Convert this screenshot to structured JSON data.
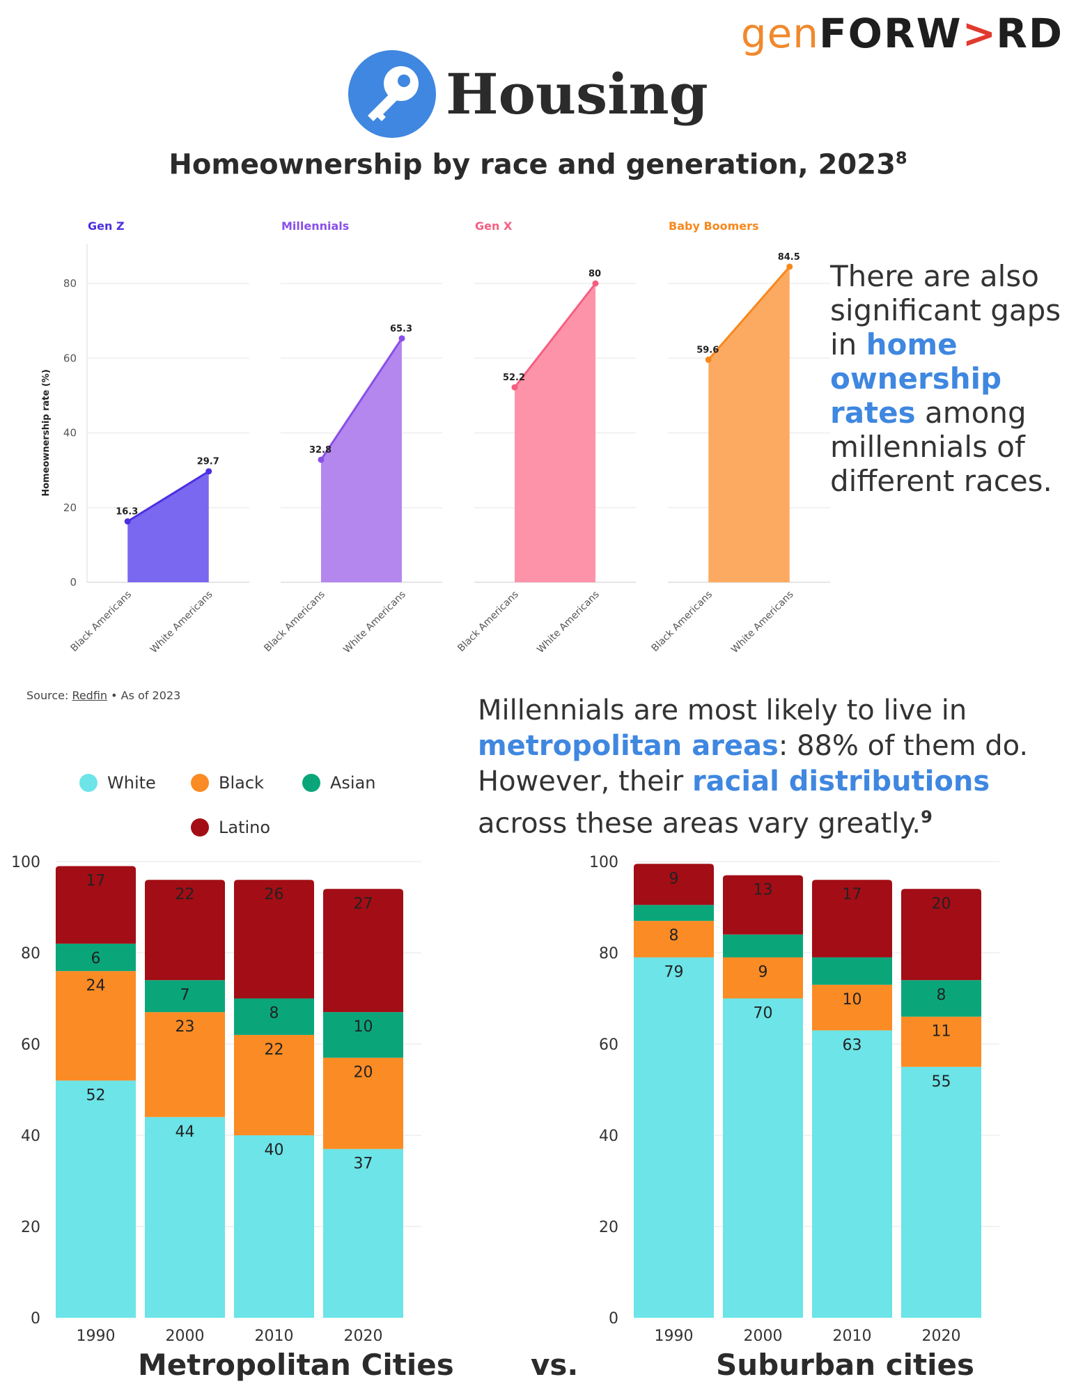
{
  "logo": {
    "gen": "gen",
    "forward_a": "FORW",
    "forward_arrow": ">",
    "forward_b": "RD"
  },
  "header": {
    "title": "Housing",
    "icon": "key-icon",
    "icon_color": "#3f87e0"
  },
  "chart_title": "Homeownership by race and generation, 2023",
  "chart_title_ref": "8",
  "source": {
    "prefix": "Source:",
    "link": "Redfin",
    "suffix": "• As of 2023"
  },
  "side_text": {
    "pre": "There are also significant gaps in",
    "highlight": "home ownership rates",
    "post": "among millennials of different races."
  },
  "mid_text": {
    "p1": "Millennials are most likely to live in",
    "h1": "metropolitan areas",
    "p2": ": 88% of them do.",
    "p3": "However, their",
    "h2": "racial distributions",
    "p4": "across these areas vary greatly.",
    "ref": "9"
  },
  "legend": [
    {
      "label": "White",
      "color": "#6ce4e8"
    },
    {
      "label": "Black",
      "color": "#fb8b24"
    },
    {
      "label": "Asian",
      "color": "#0aa67a"
    },
    {
      "label": "Latino",
      "color": "#a30d15"
    }
  ],
  "titles": {
    "metro": "Metropolitan Cities",
    "vs": "vs.",
    "suburban": "Suburban cities"
  },
  "chart_data": [
    {
      "type": "area",
      "ylabel": "Homeownership rate (%)",
      "ylim": [
        0,
        90
      ],
      "yticks": [
        0,
        20,
        40,
        60,
        80
      ],
      "categories": [
        "Black Americans",
        "White Americans"
      ],
      "series": [
        {
          "name": "Gen Z",
          "color": "#4b2fe0",
          "fill": "#7a68f0",
          "values": [
            16.3,
            29.7
          ]
        },
        {
          "name": "Millennials",
          "color": "#8a4fe8",
          "fill": "#b487ee",
          "values": [
            32.8,
            65.3
          ]
        },
        {
          "name": "Gen X",
          "color": "#f55f82",
          "fill": "#fd93a8",
          "values": [
            52.2,
            80
          ]
        },
        {
          "name": "Baby Boomers",
          "color": "#f7881d",
          "fill": "#fcaa62",
          "values": [
            59.6,
            84.5
          ]
        }
      ]
    },
    {
      "type": "bar",
      "stacked": true,
      "categories": [
        "1990",
        "2000",
        "2010",
        "2020"
      ],
      "ylim": [
        0,
        100
      ],
      "yticks": [
        0,
        20,
        40,
        60,
        80,
        100
      ],
      "series": [
        {
          "name": "White",
          "values": [
            52,
            44,
            40,
            37
          ],
          "labels": [
            "52",
            "44",
            "40",
            "37"
          ]
        },
        {
          "name": "Black",
          "values": [
            24,
            23,
            22,
            20
          ],
          "labels": [
            "24",
            "23",
            "22",
            "20"
          ]
        },
        {
          "name": "Asian",
          "values": [
            6,
            7,
            8,
            10
          ],
          "labels": [
            "6",
            "7",
            "8",
            "10"
          ]
        },
        {
          "name": "Latino",
          "values": [
            17,
            22,
            26,
            27
          ],
          "labels": [
            "17",
            "22",
            "26",
            "27"
          ]
        }
      ]
    },
    {
      "type": "bar",
      "stacked": true,
      "categories": [
        "1990",
        "2000",
        "2010",
        "2020"
      ],
      "ylim": [
        0,
        100
      ],
      "yticks": [
        0,
        20,
        40,
        60,
        80,
        100
      ],
      "series": [
        {
          "name": "White",
          "values": [
            79,
            70,
            63,
            55
          ],
          "labels": [
            "79",
            "70",
            "63",
            "55"
          ]
        },
        {
          "name": "Black",
          "values": [
            8,
            9,
            10,
            11
          ],
          "labels": [
            "8",
            "9",
            "10",
            "11"
          ]
        },
        {
          "name": "Asian",
          "values": [
            3.5,
            5,
            6,
            8
          ],
          "labels": [
            "",
            "",
            "",
            "8"
          ]
        },
        {
          "name": "Latino",
          "values": [
            9,
            13,
            17,
            20
          ],
          "labels": [
            "9",
            "13",
            "17",
            "20"
          ]
        }
      ]
    }
  ]
}
